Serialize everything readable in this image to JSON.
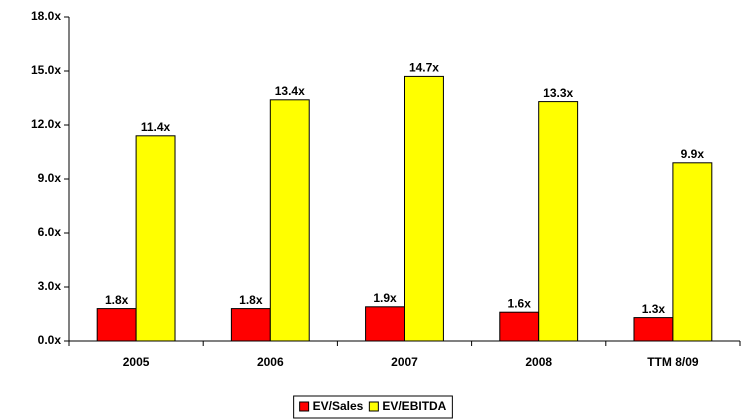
{
  "chart_data": {
    "type": "bar",
    "categories": [
      "2005",
      "2006",
      "2007",
      "2008",
      "TTM 8/09"
    ],
    "series": [
      {
        "name": "EV/Sales",
        "color": "#ff0000",
        "values": [
          1.8,
          1.8,
          1.9,
          1.6,
          1.3
        ],
        "value_labels": [
          "1.8x",
          "1.8x",
          "1.9x",
          "1.6x",
          "1.3x"
        ]
      },
      {
        "name": "EV/EBITDA",
        "color": "#ffff00",
        "values": [
          11.4,
          13.4,
          14.7,
          13.3,
          9.9
        ],
        "value_labels": [
          "11.4x",
          "13.4x",
          "14.7x",
          "13.3x",
          "9.9x"
        ]
      }
    ],
    "ylim": [
      0,
      18
    ],
    "yticks": [
      {
        "value": 0,
        "label": "0.0x"
      },
      {
        "value": 3,
        "label": "3.0x"
      },
      {
        "value": 6,
        "label": "6.0x"
      },
      {
        "value": 9,
        "label": "9.0x"
      },
      {
        "value": 12,
        "label": "12.0x"
      },
      {
        "value": 15,
        "label": "15.0x"
      },
      {
        "value": 18,
        "label": "18.0x"
      }
    ],
    "grid": false,
    "legend": "bottom"
  }
}
